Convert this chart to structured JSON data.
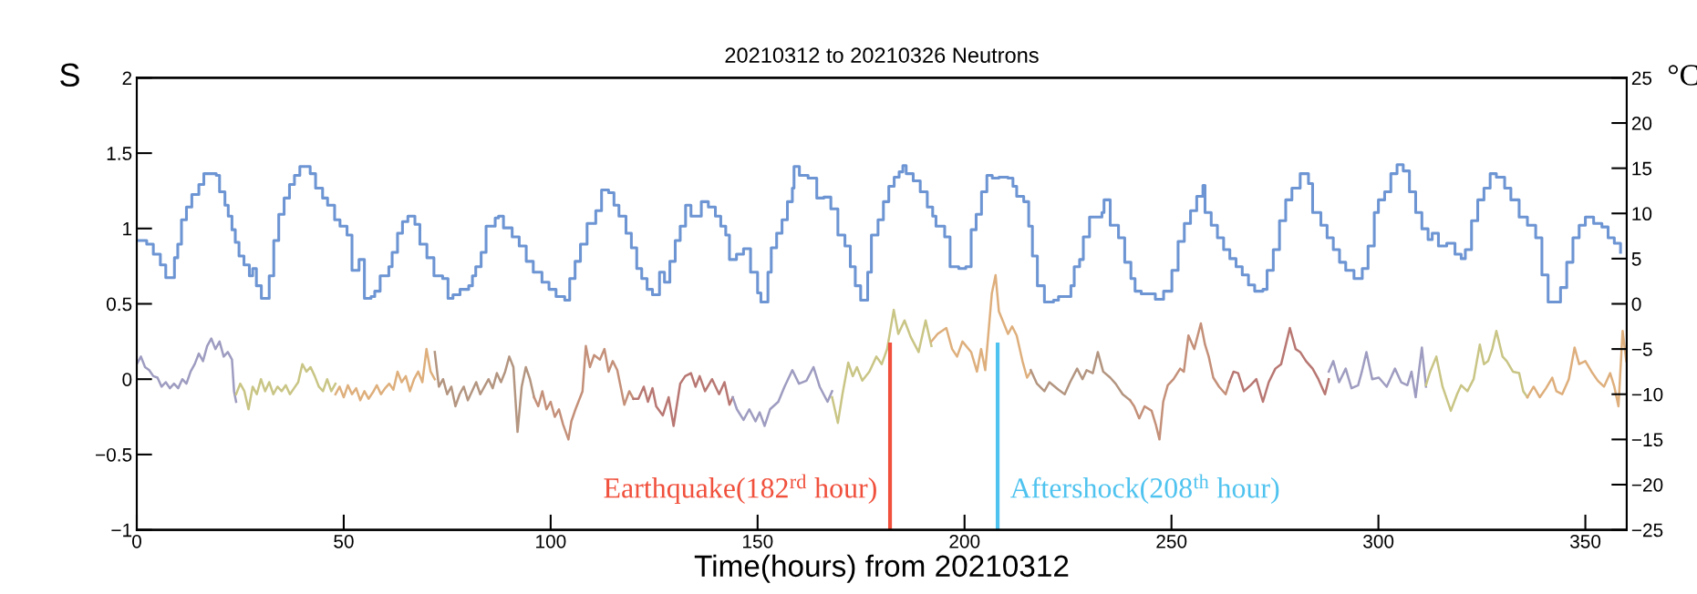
{
  "chart_data": {
    "type": "line",
    "title": "20210312 to 20210326 Neutrons",
    "xlabel": "Time(hours) from 20210312",
    "ylabel": "S",
    "y2label": "°C",
    "xlim": [
      0,
      360
    ],
    "xticks": [
      0,
      50,
      100,
      150,
      200,
      250,
      300,
      350
    ],
    "ylim": [
      -1,
      2
    ],
    "yticks": [
      {
        "value": -1,
        "label": "−1"
      },
      {
        "value": -0.5,
        "label": "−0.5"
      },
      0,
      0.5,
      1,
      1.5,
      2
    ],
    "y2lim": [
      -25,
      25
    ],
    "y2ticks": [
      {
        "value": -25,
        "label": "−25"
      },
      {
        "value": -20,
        "label": "−20"
      },
      {
        "value": -15,
        "label": "−15"
      },
      {
        "value": -10,
        "label": "−10"
      },
      {
        "value": -5,
        "label": "−5"
      },
      0,
      5,
      10,
      15,
      20,
      25
    ],
    "grid": false,
    "legend": false,
    "ref_lines": [
      {
        "axis": "x",
        "value": 182,
        "label": "Earthquake(182$^{rd}$ hour)",
        "color": "#f0503c"
      },
      {
        "axis": "x",
        "value": 208,
        "label": "Aftershock(208$^{th}$ hour)",
        "color": "#4fc3ef"
      }
    ],
    "series": [
      {
        "type": "step",
        "axis": "y2",
        "color": "#6d95d3",
        "x": [
          0,
          2.4,
          4,
          5.7,
          7,
          9.1,
          9.9,
          10.8,
          12,
          13.3,
          15,
          16.2,
          19.2,
          20,
          21.3,
          22.1,
          23,
          23.8,
          24.7,
          25.9,
          27.2,
          28,
          28.9,
          30.1,
          32,
          33.1,
          34.3,
          35.6,
          36.9,
          38.1,
          39.4,
          41.9,
          43.2,
          44.9,
          46.1,
          47.8,
          49.1,
          50.8,
          52,
          53.7,
          55,
          56.6,
          57.5,
          58.8,
          60.9,
          61.7,
          63,
          64.2,
          65.5,
          67.2,
          68.4,
          70.1,
          71.8,
          73.9,
          75.2,
          76.4,
          78.1,
          80.2,
          81.1,
          81.9,
          83.2,
          84.4,
          86.6,
          87.4,
          88.6,
          90.7,
          92.4,
          94.1,
          95.8,
          97.9,
          99.6,
          101.3,
          103.4,
          104.6,
          105.9,
          107.2,
          108.8,
          110.9,
          112.3,
          114,
          115.3,
          116.5,
          118.2,
          119.5,
          120.8,
          122,
          123.3,
          124.6,
          126.3,
          127.5,
          128.8,
          130.1,
          131.3,
          132.6,
          133.9,
          136.4,
          138.1,
          139.8,
          141.1,
          142.3,
          143.2,
          144.9,
          146.6,
          148.3,
          150,
          150.8,
          152.5,
          153.3,
          154.6,
          155.9,
          157.2,
          158.4,
          158.8,
          160.1,
          162.2,
          164.3,
          166,
          167.7,
          169.4,
          171.1,
          172.4,
          173.6,
          174.9,
          176.6,
          177.5,
          179.1,
          180.4,
          181.7,
          183,
          184.2,
          185.1,
          185.9,
          187.6,
          189.3,
          191,
          192.3,
          193.1,
          195.2,
          196.5,
          198.6,
          200.3,
          201.6,
          202.8,
          204.1,
          205.4,
          206.7,
          208.3,
          210.5,
          211.7,
          212.6,
          214.3,
          215.5,
          216.4,
          217.6,
          219.3,
          221.5,
          222.7,
          225.7,
          226.5,
          227.8,
          228.7,
          230.2,
          233.2,
          233.7,
          235.2,
          237.2,
          238.7,
          240.2,
          241.2,
          242.7,
          246.1,
          248.1,
          250.1,
          251.6,
          253.1,
          254.6,
          256.1,
          257.6,
          258.1,
          259.6,
          261.1,
          262.6,
          264.1,
          265.6,
          267.1,
          268.6,
          270.1,
          272.1,
          273.1,
          274.6,
          276.1,
          277.6,
          279.1,
          281.1,
          283.1,
          284.1,
          286.1,
          287.6,
          289.1,
          290.6,
          292.1,
          294.1,
          296.1,
          297.5,
          299,
          300,
          301.5,
          303,
          304.5,
          306,
          307.5,
          309,
          310.5,
          312,
          313,
          314.5,
          316.5,
          318.5,
          320,
          321,
          322.5,
          324,
          325.5,
          327,
          328.5,
          330.5,
          332,
          334,
          336,
          338,
          339.5,
          341,
          344,
          345.5,
          347,
          348.5,
          350,
          352,
          354,
          355.5,
          357,
          358.5
        ],
        "values": [
          7.0,
          6.6,
          5.5,
          4.3,
          2.9,
          5.1,
          6.6,
          9.3,
          10.7,
          12.1,
          13.2,
          14.4,
          14.2,
          12.4,
          10.9,
          9.7,
          8.2,
          6.8,
          5.3,
          4.3,
          3.1,
          3.9,
          2.0,
          0.6,
          3.1,
          7.0,
          9.9,
          11.7,
          13.2,
          14.2,
          15.2,
          14.4,
          12.8,
          11.7,
          10.9,
          9.3,
          8.6,
          7.6,
          3.7,
          4.9,
          0.6,
          0.8,
          1.4,
          3.1,
          4.1,
          5.7,
          7.8,
          9.1,
          9.7,
          8.8,
          6.6,
          5.1,
          3.1,
          2.8,
          0.6,
          1.0,
          1.6,
          2.0,
          3.1,
          4.1,
          5.7,
          8.6,
          9.5,
          9.7,
          8.4,
          7.4,
          6.4,
          4.7,
          3.5,
          2.4,
          1.6,
          0.8,
          0.4,
          2.8,
          4.7,
          6.6,
          8.9,
          10.3,
          12.6,
          12.3,
          10.9,
          9.7,
          7.8,
          6.2,
          3.9,
          2.8,
          1.6,
          1.0,
          3.5,
          2.4,
          4.7,
          7.0,
          8.6,
          10.9,
          9.7,
          11.3,
          10.7,
          9.7,
          8.6,
          7.6,
          4.9,
          5.5,
          6.1,
          3.5,
          1.2,
          0.2,
          3.5,
          6.2,
          7.8,
          9.3,
          11.3,
          12.8,
          15.2,
          14.2,
          13.9,
          11.7,
          11.8,
          10.5,
          7.6,
          6.4,
          4.1,
          2.0,
          0.4,
          3.5,
          7.6,
          9.3,
          11.3,
          13.0,
          14.0,
          14.6,
          15.3,
          14.4,
          13.6,
          12.4,
          10.7,
          9.7,
          8.6,
          7.4,
          4.1,
          3.9,
          4.1,
          8.2,
          9.9,
          12.4,
          14.2,
          13.9,
          14.0,
          13.9,
          13.0,
          11.9,
          11.3,
          8.6,
          5.3,
          2.0,
          0.2,
          0.4,
          0.8,
          2.0,
          4.1,
          4.9,
          7.4,
          9.6,
          10.1,
          11.5,
          8.7,
          7.3,
          4.6,
          2.8,
          1.4,
          1.1,
          0.5,
          1.4,
          3.7,
          6.9,
          8.9,
          10.3,
          11.9,
          13.1,
          10.1,
          8.7,
          7.3,
          6.0,
          5.0,
          4.1,
          3.2,
          2.1,
          1.4,
          1.6,
          3.7,
          6.0,
          9.2,
          11.5,
          12.8,
          14.4,
          13.3,
          10.1,
          8.7,
          7.3,
          6.0,
          4.6,
          3.7,
          2.8,
          3.9,
          6.4,
          10.1,
          11.5,
          12.4,
          14.4,
          15.4,
          14.7,
          12.4,
          10.1,
          8.3,
          7.1,
          7.8,
          6.4,
          6.7,
          5.5,
          5.0,
          6.0,
          9.2,
          11.5,
          12.8,
          14.4,
          14.0,
          12.8,
          11.5,
          9.6,
          8.7,
          7.3,
          3.2,
          0.2,
          1.8,
          4.6,
          7.3,
          8.7,
          9.6,
          8.9,
          8.5,
          7.3,
          6.7,
          5.7
        ]
      },
      {
        "color": "#9e9cc0",
        "x": [
          0,
          1,
          2,
          3,
          4,
          5,
          6,
          7,
          8,
          9,
          10,
          11,
          12,
          13,
          14,
          15,
          16,
          17,
          18,
          19,
          20,
          21,
          22,
          23,
          23.5,
          24
        ],
        "values": [
          0.1,
          0.15,
          0.08,
          0.06,
          0.02,
          0.01,
          -0.05,
          -0.02,
          -0.06,
          -0.03,
          -0.06,
          0.0,
          -0.03,
          0.05,
          0.1,
          0.17,
          0.12,
          0.22,
          0.27,
          0.2,
          0.25,
          0.15,
          0.18,
          0.13,
          -0.08,
          -0.15
        ]
      },
      {
        "color": "#c9c585",
        "x": [
          24,
          25,
          26,
          27,
          28,
          29,
          30,
          31,
          32,
          33,
          34,
          35,
          36,
          37,
          38,
          39,
          40,
          41,
          42,
          43,
          44,
          45,
          46,
          47,
          48
        ],
        "values": [
          -0.1,
          -0.03,
          -0.08,
          -0.2,
          -0.05,
          -0.1,
          0.0,
          -0.08,
          -0.02,
          -0.1,
          -0.05,
          -0.08,
          -0.04,
          -0.1,
          -0.06,
          -0.02,
          0.1,
          0.05,
          0.08,
          0.02,
          -0.05,
          -0.08,
          0.0,
          -0.08,
          -0.03
        ]
      },
      {
        "color": "#deaf7c",
        "x": [
          48,
          49,
          50,
          51,
          52,
          53,
          54,
          55,
          56,
          57,
          58,
          59,
          60,
          61,
          62,
          63,
          64,
          65,
          66,
          67,
          68,
          69,
          70,
          71,
          72
        ],
        "values": [
          -0.1,
          -0.05,
          -0.12,
          -0.04,
          -0.1,
          -0.06,
          -0.14,
          -0.08,
          -0.13,
          -0.09,
          -0.04,
          -0.1,
          -0.06,
          -0.03,
          -0.07,
          0.05,
          -0.02,
          0.02,
          -0.08,
          0.0,
          0.05,
          -0.02,
          0.2,
          0.05,
          0.0
        ]
      },
      {
        "color": "#b39580",
        "x": [
          72,
          73,
          74,
          75,
          76,
          77,
          78,
          79,
          80,
          81,
          82,
          83,
          84,
          85,
          86,
          87,
          88,
          89,
          90,
          91,
          92,
          93,
          94,
          95,
          96
        ],
        "values": [
          0.18,
          -0.05,
          0.0,
          -0.1,
          -0.05,
          -0.18,
          -0.1,
          -0.05,
          -0.14,
          -0.08,
          -0.02,
          -0.1,
          -0.05,
          0.0,
          -0.06,
          0.04,
          -0.02,
          0.05,
          0.15,
          0.08,
          -0.35,
          -0.05,
          0.08,
          0.0,
          -0.12
        ]
      },
      {
        "color": "#c49079",
        "x": [
          96,
          97,
          98,
          99,
          100,
          101,
          102,
          103,
          104.3,
          105,
          106,
          107.7,
          108.5,
          109.5,
          110.5,
          111.9,
          113,
          114,
          115,
          116.1,
          117.8,
          119,
          120
        ],
        "values": [
          -0.12,
          -0.18,
          -0.08,
          -0.2,
          -0.15,
          -0.25,
          -0.2,
          -0.3,
          -0.4,
          -0.28,
          -0.2,
          -0.08,
          0.22,
          0.08,
          0.16,
          0.13,
          0.2,
          0.05,
          0.12,
          0.06,
          -0.17,
          -0.08,
          -0.13
        ]
      },
      {
        "color": "#b87772",
        "x": [
          120,
          121.2,
          122.5,
          123.5,
          124.6,
          125.5,
          127.1,
          128.5,
          129.7,
          131.3,
          132.5,
          133.9,
          135,
          136,
          137.3,
          139,
          140.7,
          142,
          143.2,
          144
        ],
        "values": [
          -0.13,
          -0.13,
          -0.05,
          -0.15,
          -0.06,
          -0.18,
          -0.24,
          -0.12,
          -0.31,
          -0.03,
          0.02,
          0.04,
          -0.05,
          0.02,
          -0.08,
          0.0,
          -0.1,
          -0.02,
          -0.17,
          -0.12
        ]
      },
      {
        "color": "#9e9cc0",
        "x": [
          144,
          145,
          146.6,
          148,
          149.5,
          150.5,
          151.7,
          153,
          155,
          156.5,
          158.4,
          160,
          161.8,
          163.5,
          165,
          166.9,
          168
        ],
        "values": [
          -0.12,
          -0.2,
          -0.27,
          -0.2,
          -0.28,
          -0.22,
          -0.31,
          -0.2,
          -0.15,
          -0.05,
          0.06,
          -0.03,
          -0.01,
          0.08,
          -0.05,
          -0.15,
          -0.08
        ]
      },
      {
        "color": "#c9c585",
        "x": [
          168,
          169.4,
          170.5,
          171.9,
          173,
          174,
          175.3,
          177,
          178.7,
          180,
          181.3,
          182.9,
          184,
          185.5,
          187,
          188.9,
          190.6,
          192
        ],
        "values": [
          -0.12,
          -0.29,
          -0.1,
          0.11,
          0.02,
          0.08,
          -0.01,
          0.05,
          0.15,
          0.1,
          0.2,
          0.46,
          0.3,
          0.39,
          0.28,
          0.18,
          0.39,
          0.22
        ]
      },
      {
        "color": "#deaf7c",
        "x": [
          192,
          193.5,
          195.6,
          197,
          198.2,
          199.5,
          201.6,
          203,
          204,
          205,
          206.6,
          207.5,
          208.3,
          209.2,
          210.5,
          211.5,
          212.6,
          214,
          215.1,
          216
        ],
        "values": [
          0.25,
          0.3,
          0.34,
          0.2,
          0.15,
          0.25,
          0.18,
          0.05,
          0.2,
          0.06,
          0.57,
          0.69,
          0.45,
          0.39,
          0.3,
          0.35,
          0.29,
          0.12,
          0.01,
          0.05
        ]
      },
      {
        "color": "#b39580",
        "x": [
          216,
          217.5,
          219.3,
          220.5,
          222.7,
          224.2,
          225.5,
          227.2,
          228.5,
          229.5,
          231,
          232.2,
          233.5,
          235.2,
          236.5,
          238.2,
          240
        ],
        "values": [
          0.06,
          -0.03,
          -0.08,
          -0.02,
          -0.07,
          -0.1,
          -0.02,
          0.07,
          0.0,
          0.06,
          0.04,
          0.18,
          0.05,
          0.01,
          -0.03,
          -0.1,
          -0.14
        ]
      },
      {
        "color": "#c49079",
        "x": [
          240,
          241,
          242.2,
          243.5,
          245.2,
          246.2,
          247.1,
          248,
          249.1,
          250.5,
          252.1,
          253,
          254.1,
          255.5,
          257.1,
          258.1,
          259,
          260.1,
          261.5,
          263.1,
          264
        ],
        "values": [
          -0.14,
          -0.18,
          -0.26,
          -0.18,
          -0.21,
          -0.3,
          -0.4,
          -0.15,
          -0.04,
          0.0,
          0.07,
          0.05,
          0.29,
          0.2,
          0.37,
          0.23,
          0.15,
          0.01,
          -0.05,
          -0.1,
          -0.02
        ]
      },
      {
        "color": "#b87772",
        "x": [
          264,
          265,
          266.1,
          267.5,
          269.1,
          270.5,
          272.1,
          273.5,
          275.1,
          276.5,
          278.6,
          280,
          281.1,
          282.5,
          284.1,
          285.5,
          287.1,
          288
        ],
        "values": [
          -0.02,
          0.05,
          0.04,
          -0.08,
          -0.04,
          0.0,
          -0.15,
          -0.02,
          0.07,
          0.1,
          0.34,
          0.2,
          0.18,
          0.12,
          0.07,
          0.0,
          -0.1,
          0.0
        ]
      },
      {
        "color": "#9e9cc0",
        "x": [
          288,
          289.1,
          290.5,
          292.1,
          293.5,
          295.1,
          296,
          297.1,
          298.5,
          300.1,
          302,
          304,
          305.5,
          307,
          308,
          309,
          310.5,
          311.5
        ],
        "values": [
          0.05,
          0.12,
          -0.02,
          0.07,
          -0.06,
          -0.04,
          0.05,
          0.18,
          0.0,
          0.01,
          -0.05,
          0.07,
          -0.02,
          -0.04,
          0.05,
          -0.12,
          0.21,
          -0.05
        ]
      },
      {
        "color": "#c9c585",
        "x": [
          311.5,
          312.5,
          314,
          315.5,
          317.5,
          319,
          320,
          321.5,
          323,
          324.5,
          325.5,
          326.5,
          327.5,
          328.5,
          330,
          331,
          332.5,
          334,
          335,
          336
        ],
        "values": [
          -0.04,
          0.05,
          0.15,
          -0.05,
          -0.21,
          -0.1,
          -0.04,
          -0.08,
          0.0,
          0.23,
          0.1,
          0.12,
          0.2,
          0.32,
          0.15,
          0.12,
          0.05,
          0.04,
          -0.08,
          -0.12
        ]
      },
      {
        "color": "#deaf7c",
        "x": [
          336,
          337.5,
          339,
          340.5,
          342,
          343,
          344.4,
          346,
          347.4,
          348.5,
          350,
          351.5,
          353,
          354.5,
          356,
          357,
          358,
          359,
          359.9
        ],
        "values": [
          -0.12,
          -0.05,
          -0.12,
          -0.06,
          0.01,
          -0.08,
          -0.1,
          0.0,
          0.21,
          0.1,
          0.12,
          0.05,
          -0.01,
          -0.05,
          0.04,
          -0.05,
          -0.18,
          0.32,
          0.12
        ]
      }
    ]
  }
}
